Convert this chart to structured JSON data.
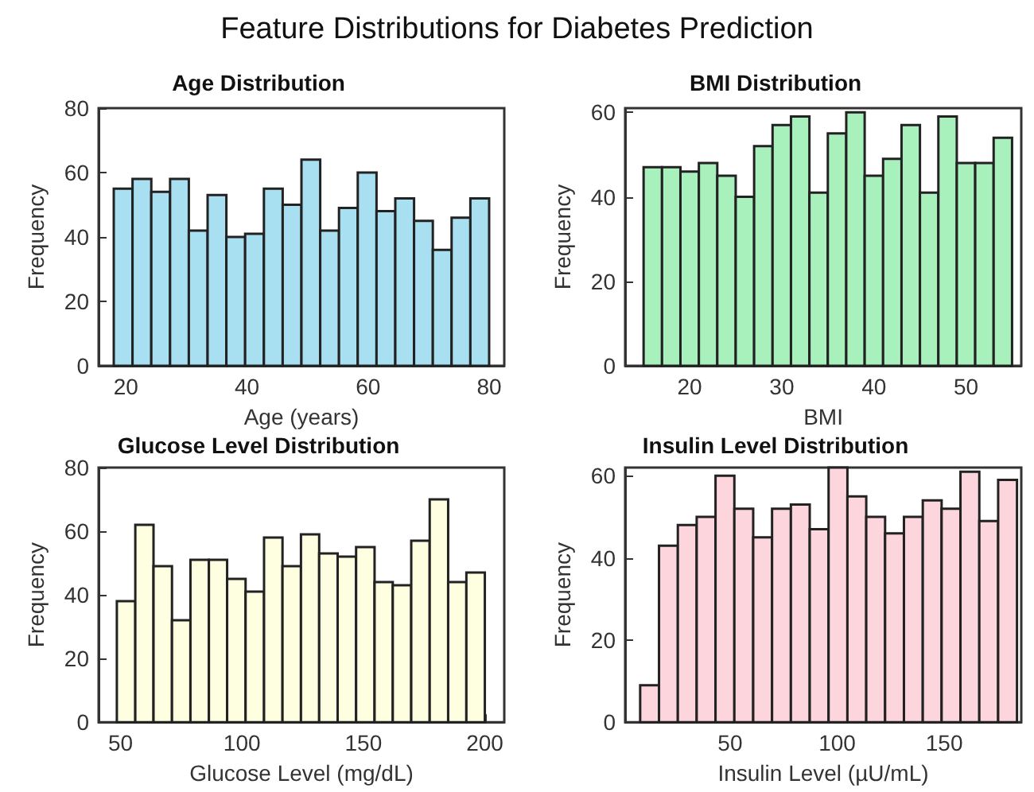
{
  "chart_data": [
    {
      "type": "histogram",
      "title": "Age Distribution",
      "annotations": [
        "Feature Distributions for Diabetes Prediction"
      ],
      "xlabel": "Age (years)",
      "ylabel": "Frequency",
      "color": "#a8e0f2",
      "bins": [
        18,
        21.1,
        24.2,
        27.3,
        30.4,
        33.5,
        36.6,
        39.7,
        42.8,
        45.9,
        49,
        52.1,
        55.2,
        58.3,
        61.4,
        64.5,
        67.6,
        70.7,
        73.8,
        76.9,
        80
      ],
      "values": [
        55,
        58,
        54,
        58,
        42,
        53,
        40,
        41,
        55,
        50,
        64,
        42,
        49,
        60,
        48,
        52,
        45,
        36,
        46,
        52
      ],
      "xlim": [
        15.5,
        82.5
      ],
      "xticks": [
        20,
        40,
        60,
        80
      ],
      "ylim": [
        0,
        80
      ],
      "yticks": [
        0,
        20,
        40,
        60,
        80
      ]
    },
    {
      "type": "histogram",
      "title": "BMI Distribution",
      "xlabel": "BMI",
      "ylabel": "Frequency",
      "color": "#a8f0bc",
      "bins": [
        15,
        17,
        19,
        21,
        23,
        25,
        27,
        29,
        31,
        33,
        35,
        37,
        39,
        41,
        43,
        45,
        47,
        49,
        51,
        53,
        55
      ],
      "values": [
        47,
        47,
        46,
        48,
        45,
        40,
        52,
        57,
        59,
        41,
        55,
        60,
        45,
        49,
        57,
        41,
        59,
        48,
        48,
        54
      ],
      "xlim": [
        13,
        56
      ],
      "xticks": [
        20,
        30,
        40,
        50
      ],
      "ylim": [
        0,
        61
      ],
      "yticks": [
        0,
        20,
        40,
        60
      ]
    },
    {
      "type": "histogram",
      "title": "Glucose Level Distribution",
      "xlabel": "Glucose Level (mg/dL)",
      "ylabel": "Frequency",
      "color": "#fefee0",
      "bins": [
        48.5,
        56.1,
        63.6,
        71.2,
        78.8,
        86.4,
        93.9,
        101.5,
        109.1,
        116.7,
        124.3,
        131.8,
        139.4,
        147,
        154.6,
        162.1,
        169.7,
        177.3,
        184.9,
        192.4,
        200
      ],
      "values": [
        38,
        62,
        49,
        32,
        51,
        51,
        45,
        41,
        58,
        49,
        59,
        53,
        52,
        55,
        44,
        43,
        57,
        70,
        44,
        47
      ],
      "xlim": [
        41,
        208
      ],
      "xticks": [
        50,
        100,
        150,
        200
      ],
      "ylim": [
        0,
        80
      ],
      "yticks": [
        0,
        20,
        40,
        60,
        80
      ]
    },
    {
      "type": "histogram",
      "title": "Insulin Level Distribution",
      "xlabel": "Insulin Level (µU/mL)",
      "ylabel": "Frequency",
      "color": "#fdd5dc",
      "bins": [
        8,
        16.8,
        25.6,
        34.4,
        43.2,
        52,
        60.8,
        69.6,
        78.4,
        87.2,
        96,
        104.8,
        113.6,
        122.4,
        131.2,
        140,
        148.8,
        157.6,
        166.4,
        175.2,
        184
      ],
      "values": [
        9,
        43,
        48,
        50,
        60,
        52,
        45,
        52,
        53,
        47,
        62,
        55,
        50,
        46,
        50,
        54,
        52,
        61,
        49,
        59
      ],
      "xlim": [
        1,
        186
      ],
      "xticks": [
        50,
        100,
        150
      ],
      "ylim": [
        0,
        62
      ],
      "yticks": [
        0,
        20,
        40,
        60
      ]
    }
  ]
}
